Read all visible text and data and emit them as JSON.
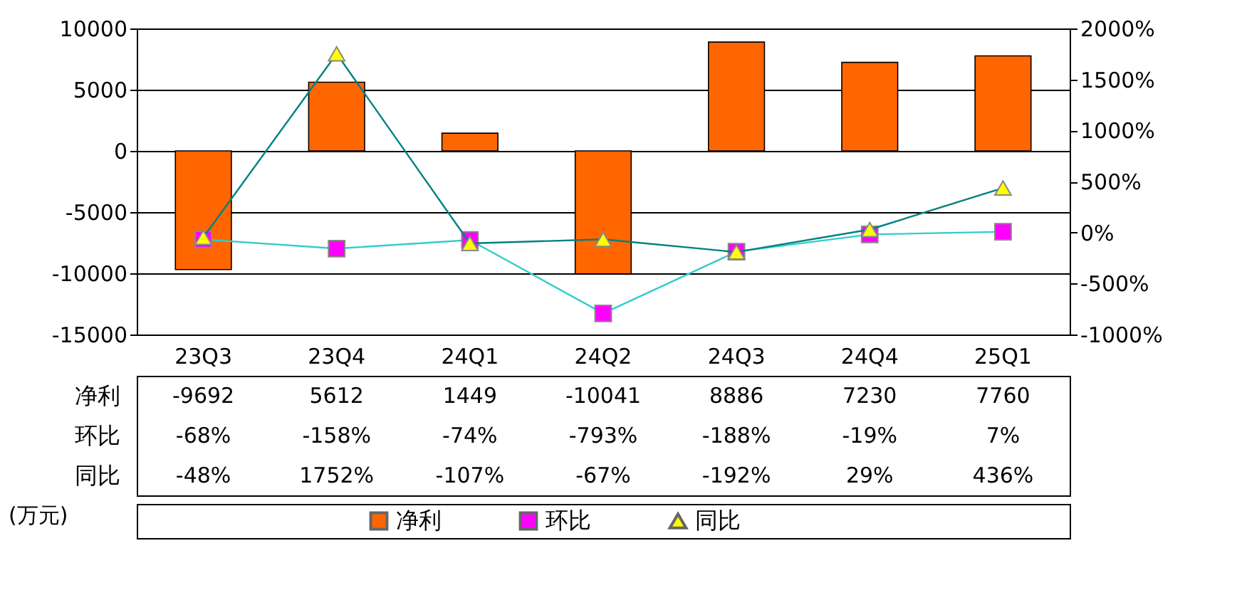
{
  "chart_data": {
    "type": "bar",
    "categories": [
      "23Q3",
      "23Q4",
      "24Q1",
      "24Q2",
      "24Q3",
      "24Q4",
      "25Q1"
    ],
    "series": [
      {
        "name": "净利",
        "color": "#ff6600",
        "values": [
          -9692,
          5612,
          1449,
          -10041,
          8886,
          7230,
          7760
        ],
        "value_labels": [
          "-9692",
          "5612",
          "1449",
          "-10041",
          "8886",
          "7230",
          "7760"
        ]
      },
      {
        "name": "环比",
        "type": "line",
        "axis": "y2",
        "marker": "square",
        "color": "#ff00ff",
        "values": [
          -68,
          -158,
          -74,
          -793,
          -188,
          -19,
          7
        ],
        "value_labels": [
          "-68%",
          "-158%",
          "-74%",
          "-793%",
          "-188%",
          "-19%",
          "7%"
        ]
      },
      {
        "name": "同比",
        "type": "line",
        "axis": "y2",
        "marker": "triangle",
        "color": "#ffff00",
        "values": [
          -48,
          1752,
          -107,
          -67,
          -192,
          29,
          436
        ],
        "value_labels": [
          "-48%",
          "1752%",
          "-107%",
          "-67%",
          "-192%",
          "29%",
          "436%"
        ]
      }
    ],
    "ylim": [
      -15000,
      10000
    ],
    "yticks": [
      -15000,
      -10000,
      -5000,
      0,
      5000,
      10000
    ],
    "y2lim": [
      -1000,
      2000
    ],
    "y2ticks": [
      {
        "value": -1000,
        "label": "-1000%"
      },
      {
        "value": -500,
        "label": "-500%"
      },
      {
        "value": 0,
        "label": "0%"
      },
      {
        "value": 500,
        "label": "500%"
      },
      {
        "value": 1000,
        "label": "1000%"
      },
      {
        "value": 1500,
        "label": "1500%"
      },
      {
        "value": 2000,
        "label": "2000%"
      }
    ],
    "grid": "y",
    "legend": "bottom",
    "annotations": [
      "(万元)"
    ]
  }
}
